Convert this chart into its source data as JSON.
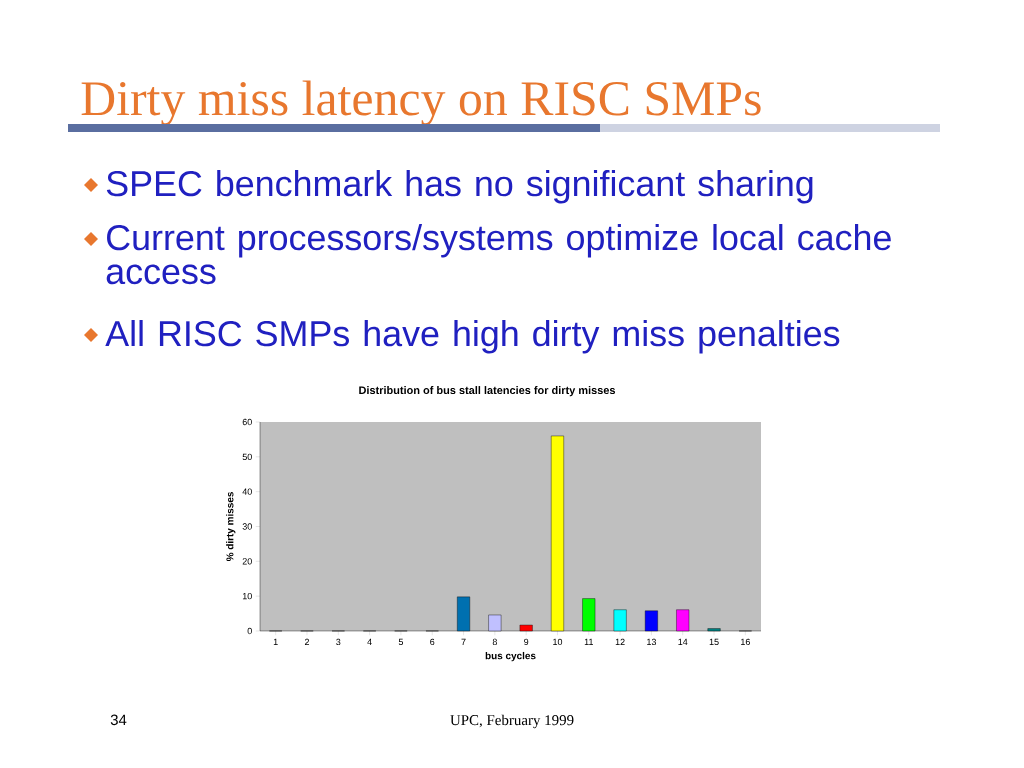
{
  "chart_data": {
    "type": "bar",
    "title": "Dirty miss latency on RISC SMPs",
    "subtitle": "Distribution of bus stall latencies for dirty misses",
    "xlabel": "bus cycles",
    "ylabel": "% dirty misses",
    "categories": [
      "1",
      "2",
      "3",
      "4",
      "5",
      "6",
      "7",
      "8",
      "9",
      "10",
      "11",
      "12",
      "13",
      "14",
      "15",
      "16"
    ],
    "values": [
      0,
      0,
      0,
      0,
      0,
      0,
      9.8,
      4.6,
      1.7,
      56,
      9.3,
      6.1,
      5.8,
      6.1,
      0.7,
      0
    ],
    "colors": [
      null,
      null,
      null,
      null,
      null,
      null,
      "#0070b0",
      "#c0c0ff",
      "#ff0000",
      "#ffff00",
      "#00ff00",
      "#00ffff",
      "#0000ff",
      "#ff00ff",
      "#008080",
      null
    ],
    "ylim": [
      0,
      60
    ],
    "yticks": [
      0,
      10,
      20,
      30,
      40,
      50,
      60
    ],
    "grid": false,
    "annotations": [
      "SPEC benchmark has no significant sharing",
      "Current processors/systems optimize local cache access",
      "All RISC SMPs have high dirty miss penalties",
      "34",
      "UPC, February 1999"
    ]
  }
}
